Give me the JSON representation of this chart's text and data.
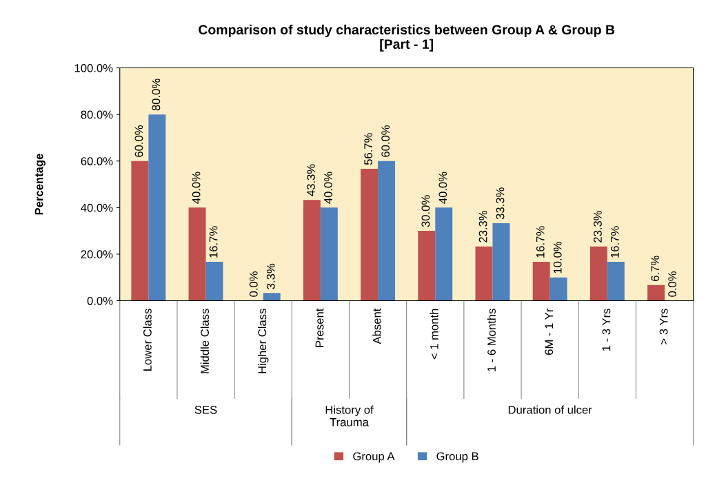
{
  "chart_data": {
    "type": "bar",
    "title": "Comparison of study characteristics between Group A & Group B\n[Part - 1]",
    "ylabel": "Percentage",
    "categories": [
      "Lower Class",
      "Middle Class",
      "Higher Class",
      "Present",
      "Absent",
      "< 1 month",
      "1 - 6 Months",
      "6M - 1 Yr",
      "1 - 3 Yrs",
      "> 3 Yrs"
    ],
    "series": [
      {
        "name": "Group A",
        "color": "#c0504d",
        "values": [
          60.0,
          40.0,
          0.0,
          43.3,
          56.7,
          30.0,
          23.3,
          16.7,
          23.3,
          6.7
        ],
        "value_labels": [
          "60.0%",
          "40.0%",
          "0.0%",
          "43.3%",
          "56.7%",
          "30.0%",
          "23.3%",
          "16.7%",
          "23.3%",
          "6.7%"
        ]
      },
      {
        "name": "Group B",
        "color": "#4f81bd",
        "values": [
          80.0,
          16.7,
          3.3,
          40.0,
          60.0,
          40.0,
          33.3,
          10.0,
          16.7,
          0.0
        ],
        "value_labels": [
          "80.0%",
          "16.7%",
          "3.3%",
          "40.0%",
          "60.0%",
          "40.0%",
          "33.3%",
          "10.0%",
          "16.7%",
          "0.0%"
        ]
      }
    ],
    "ylim": [
      0,
      100
    ],
    "yticks": [
      {
        "value": 0,
        "label": "0.0%"
      },
      {
        "value": 20,
        "label": "20.0%"
      },
      {
        "value": 40,
        "label": "40.0%"
      },
      {
        "value": 60,
        "label": "60.0%"
      },
      {
        "value": 80,
        "label": "80.0%"
      },
      {
        "value": 100,
        "label": "100.0%"
      }
    ],
    "annotations": [
      "SES",
      "History of\nTrauma",
      "Duration of ulcer"
    ],
    "grid": false,
    "legend": "bottom"
  }
}
